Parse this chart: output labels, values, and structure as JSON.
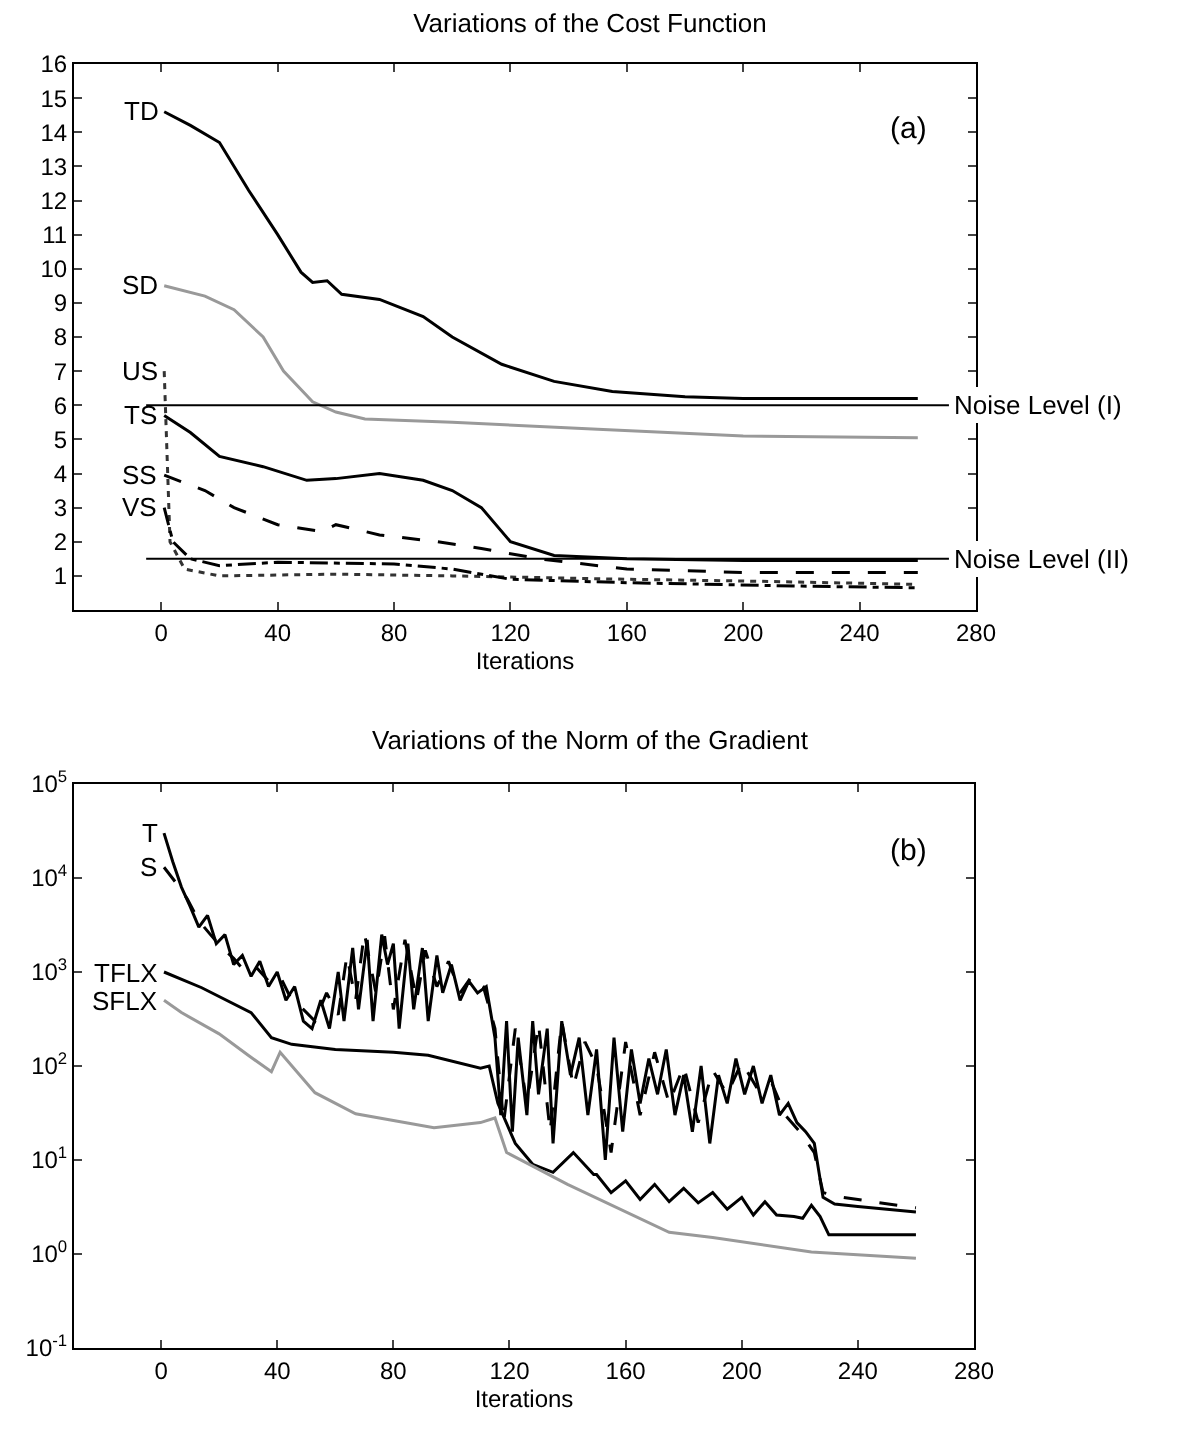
{
  "chart_data": [
    {
      "type": "line",
      "title": "Variations of the Cost Function",
      "xlabel": "Iterations",
      "xlim": [
        -30,
        280
      ],
      "xticks": [
        0,
        40,
        80,
        120,
        160,
        200,
        240,
        280
      ],
      "ylim": [
        0,
        16
      ],
      "yticks": [
        1,
        2,
        3,
        4,
        5,
        6,
        7,
        8,
        9,
        10,
        11,
        12,
        13,
        14,
        15,
        16
      ],
      "grid": false,
      "legend": false,
      "annotations": [
        "(a)"
      ],
      "ref_lines": [
        {
          "axis": "y",
          "value": 6,
          "label": "Noise Level (I)"
        },
        {
          "axis": "y",
          "value": 1.5,
          "label": "Noise Level (II)"
        }
      ],
      "series": [
        {
          "name": "TD",
          "color": "#000000",
          "line_style": "solid",
          "x": [
            1,
            10,
            20,
            30,
            40,
            48,
            52,
            57,
            62,
            75,
            90,
            100,
            117,
            135,
            155,
            180,
            200,
            230,
            260
          ],
          "values": [
            14.6,
            14.2,
            13.7,
            12.3,
            11,
            9.9,
            9.6,
            9.65,
            9.25,
            9.1,
            8.6,
            8,
            7.2,
            6.7,
            6.4,
            6.25,
            6.2,
            6.2,
            6.2
          ]
        },
        {
          "name": "SD",
          "color": "#999999",
          "line_style": "solid",
          "x": [
            1,
            15,
            25,
            35,
            42,
            52,
            60,
            70,
            100,
            150,
            200,
            260
          ],
          "values": [
            9.5,
            9.2,
            8.8,
            8,
            7,
            6.1,
            5.8,
            5.6,
            5.5,
            5.3,
            5.1,
            5.05
          ]
        },
        {
          "name": "US",
          "color": "#333333",
          "line_style": "dotted",
          "x": [
            1,
            3,
            8,
            20,
            60,
            100,
            160,
            200,
            260
          ],
          "values": [
            7,
            2,
            1.2,
            1,
            1.05,
            1,
            0.9,
            0.85,
            0.75
          ]
        },
        {
          "name": "TS",
          "color": "#000000",
          "line_style": "solid",
          "x": [
            1,
            10,
            20,
            35,
            50,
            60,
            75,
            90,
            100,
            110,
            120,
            135,
            160,
            200,
            260
          ],
          "values": [
            5.7,
            5.2,
            4.5,
            4.2,
            3.8,
            3.85,
            4,
            3.8,
            3.5,
            3,
            2,
            1.6,
            1.5,
            1.45,
            1.45
          ]
        },
        {
          "name": "SS",
          "color": "#000000",
          "line_style": "dashed",
          "x": [
            1,
            15,
            25,
            40,
            55,
            60,
            75,
            95,
            110,
            130,
            160,
            200,
            260
          ],
          "values": [
            3.95,
            3.5,
            3,
            2.5,
            2.3,
            2.5,
            2.2,
            2,
            1.8,
            1.5,
            1.2,
            1.1,
            1.1
          ]
        },
        {
          "name": "VS",
          "color": "#000000",
          "line_style": "dashdot",
          "x": [
            1,
            4,
            10,
            20,
            40,
            80,
            100,
            120,
            160,
            220,
            260
          ],
          "values": [
            3,
            2,
            1.5,
            1.3,
            1.4,
            1.35,
            1.2,
            0.9,
            0.8,
            0.7,
            0.65
          ]
        }
      ]
    },
    {
      "type": "line",
      "title": "Variations of the Norm of the Gradient",
      "xlabel": "Iterations",
      "xlim": [
        -30,
        280
      ],
      "xticks": [
        0,
        40,
        80,
        120,
        160,
        200,
        240,
        280
      ],
      "log": true,
      "ylim": [
        0.1,
        100000
      ],
      "yticks": [
        {
          "value": 0.1,
          "label": "10$^{-1}$"
        },
        {
          "value": 1,
          "label": "10$^{0}$"
        },
        {
          "value": 10,
          "label": "10$^{1}$"
        },
        {
          "value": 100,
          "label": "10$^{2}$"
        },
        {
          "value": 1000,
          "label": "10$^{3}$"
        },
        {
          "value": 10000,
          "label": "10$^{4}$"
        },
        {
          "value": 100000,
          "label": "10$^{5}$"
        }
      ],
      "grid": false,
      "legend": false,
      "annotations": [
        "(b)"
      ],
      "series": [
        {
          "name": "T",
          "color": "#000000",
          "line_style": "solid",
          "x": [
            1,
            4,
            7,
            10,
            13,
            16,
            19,
            22,
            25,
            28,
            31,
            34,
            37,
            40,
            43,
            46,
            49,
            52,
            55,
            58,
            61,
            63,
            66,
            68,
            71,
            73,
            76,
            78,
            80,
            82,
            85,
            87,
            90,
            92,
            95,
            97,
            100,
            103,
            106,
            109,
            112,
            115,
            117,
            119,
            121,
            123,
            126,
            128,
            130,
            133,
            135,
            138,
            141,
            144,
            147,
            150,
            153,
            156,
            159,
            162,
            165,
            168,
            171,
            174,
            177,
            180,
            183,
            186,
            189,
            192,
            195,
            198,
            201,
            204,
            207,
            210,
            213,
            216,
            219,
            222,
            225,
            228,
            232,
            240,
            250,
            260
          ],
          "values": [
            30000,
            15000,
            8000,
            5000,
            3000,
            4000,
            2000,
            2500,
            1200,
            1500,
            900,
            1300,
            700,
            1000,
            500,
            700,
            300,
            250,
            500,
            250,
            1000,
            300,
            1800,
            400,
            2200,
            300,
            2500,
            1200,
            2000,
            250,
            2000,
            400,
            1800,
            300,
            1500,
            600,
            1200,
            500,
            800,
            600,
            700,
            200,
            30,
            300,
            20,
            200,
            30,
            300,
            50,
            250,
            15,
            300,
            80,
            200,
            30,
            150,
            10,
            200,
            20,
            150,
            40,
            120,
            50,
            150,
            30,
            80,
            20,
            100,
            15,
            80,
            40,
            120,
            50,
            100,
            40,
            80,
            30,
            40,
            25,
            20,
            15,
            4,
            3.4,
            3.2,
            3,
            2.8
          ]
        },
        {
          "name": "S",
          "color": "#000000",
          "line_style": "dashed",
          "x": [
            1,
            5,
            9,
            13,
            17,
            21,
            25,
            29,
            33,
            37,
            41,
            45,
            49,
            53,
            57,
            61,
            64,
            67,
            70,
            74,
            77,
            80,
            84,
            88,
            91,
            95,
            99,
            103,
            107,
            111,
            115,
            118,
            122,
            126,
            130,
            134,
            138,
            142,
            146,
            150,
            155,
            160,
            165,
            170,
            175,
            180,
            185,
            190,
            195,
            200,
            205,
            210,
            215,
            220,
            225,
            228,
            235,
            245,
            260
          ],
          "values": [
            13000,
            9000,
            6000,
            3500,
            2500,
            1800,
            1400,
            1000,
            1100,
            800,
            900,
            500,
            400,
            300,
            600,
            350,
            1500,
            500,
            2600,
            600,
            2400,
            400,
            2200,
            500,
            1700,
            700,
            1300,
            600,
            900,
            700,
            250,
            25,
            250,
            40,
            280,
            20,
            300,
            60,
            180,
            100,
            12,
            180,
            30,
            140,
            40,
            100,
            25,
            90,
            50,
            110,
            60,
            70,
            30,
            20,
            12,
            4.5,
            4,
            3.6,
            3.1
          ]
        },
        {
          "name": "TFLX",
          "color": "#000000",
          "line_style": "solid",
          "x": [
            1,
            14,
            31,
            38,
            45,
            60,
            80,
            92,
            110,
            113,
            116,
            122,
            128,
            135,
            142,
            149,
            150,
            155,
            160,
            165,
            170,
            175,
            180,
            185,
            190,
            195,
            200,
            204,
            208,
            212,
            218,
            221,
            224,
            227,
            230,
            260
          ],
          "values": [
            1000,
            680,
            370,
            200,
            170,
            150,
            140,
            130,
            95,
            100,
            40,
            15,
            9,
            7.4,
            12,
            7,
            7,
            4.5,
            6,
            3.8,
            5.5,
            3.6,
            5,
            3.5,
            4.5,
            3,
            4,
            2.6,
            3.6,
            2.6,
            2.5,
            2.4,
            3.3,
            2.5,
            1.6,
            1.6
          ]
        },
        {
          "name": "SFLX",
          "color": "#999999",
          "line_style": "solid",
          "x": [
            1,
            7,
            20,
            30,
            38,
            41,
            53,
            67,
            94,
            110,
            115,
            119,
            140,
            175,
            190,
            224,
            260
          ],
          "values": [
            500,
            370,
            220,
            130,
            87,
            140,
            52,
            31,
            22,
            25,
            28,
            12,
            5.5,
            1.7,
            1.5,
            1.05,
            0.9
          ]
        }
      ]
    }
  ]
}
